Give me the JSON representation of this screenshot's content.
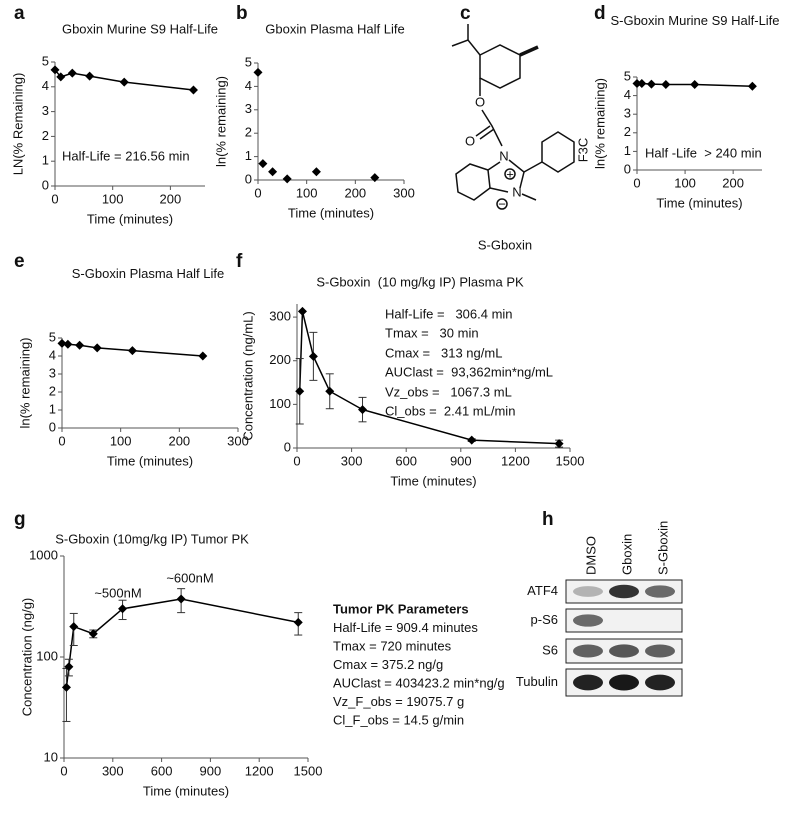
{
  "panels": [
    "a",
    "b",
    "c",
    "d",
    "e",
    "f",
    "g",
    "h"
  ],
  "chart_data": [
    {
      "type": "line",
      "title": "Gboxin Murine S9 Half-Life",
      "x_label": "Time (minutes)",
      "y_label": "LN(% Remaining)",
      "x": [
        0,
        10,
        30,
        60,
        120,
        240
      ],
      "values": [
        4.68,
        4.4,
        4.55,
        4.43,
        4.19,
        3.87
      ],
      "color": "#000000",
      "xlim": [
        0,
        260
      ],
      "xticks": [
        0,
        100,
        200
      ],
      "ylim": [
        0,
        5
      ],
      "yticks": [
        0,
        1,
        2,
        3,
        4,
        5
      ],
      "annotations": [
        "Half-Life = 216.56 min"
      ]
    },
    {
      "type": "scatter",
      "title": "Gboxin Plasma Half Life",
      "x_label": "Time (minutes)",
      "y_label": "ln(% remaining)",
      "x": [
        0,
        10,
        30,
        60,
        120,
        240
      ],
      "values": [
        4.6,
        0.7,
        0.35,
        0.05,
        0.35,
        0.1
      ],
      "color": "#000000",
      "xlim": [
        0,
        300
      ],
      "xticks": [
        0,
        100,
        200,
        300
      ],
      "ylim": [
        0,
        5
      ],
      "yticks": [
        0,
        1,
        2,
        3,
        4,
        5
      ]
    },
    {
      "type": "line",
      "title": "S-Gboxin Murine S9 Half-Life",
      "x_label": "Time (minutes)",
      "y_label": "ln(% remaining)",
      "x": [
        0,
        10,
        30,
        60,
        120,
        240
      ],
      "values": [
        4.65,
        4.65,
        4.62,
        4.6,
        4.6,
        4.5
      ],
      "color": "#000000",
      "xlim": [
        0,
        260
      ],
      "xticks": [
        0,
        100,
        200
      ],
      "ylim": [
        0,
        5
      ],
      "yticks": [
        0,
        1,
        2,
        3,
        4,
        5
      ],
      "annotations": [
        "Half -Life  > 240 min"
      ]
    },
    {
      "type": "line",
      "title": "S-Gboxin Plasma Half Life",
      "x_label": "Time (minutes)",
      "y_label": "ln(% remaining)",
      "x": [
        0,
        10,
        30,
        60,
        120,
        240
      ],
      "values": [
        4.7,
        4.65,
        4.6,
        4.45,
        4.3,
        4.0
      ],
      "color": "#000000",
      "xlim": [
        0,
        300
      ],
      "xticks": [
        0,
        100,
        200,
        300
      ],
      "ylim": [
        0,
        5
      ],
      "yticks": [
        0,
        1,
        2,
        3,
        4,
        5
      ]
    },
    {
      "type": "line",
      "title": "S-Gboxin  (10 mg/kg IP) Plasma PK",
      "x_label": "Time (minutes)",
      "y_label": "Concentration (ng/mL)",
      "x": [
        15,
        30,
        90,
        180,
        360,
        960,
        1440
      ],
      "values": [
        130,
        313,
        210,
        130,
        88,
        18,
        10
      ],
      "errors": [
        75,
        null,
        55,
        40,
        28,
        3,
        8
      ],
      "color": "#000000",
      "xlim": [
        0,
        1500
      ],
      "xticks": [
        0,
        300,
        600,
        900,
        1200,
        1500
      ],
      "ylim": [
        0,
        330
      ],
      "yticks": [
        0,
        100,
        200,
        300
      ],
      "annotations": [
        "Half-Life =   306.4 min",
        "Tmax =   30 min",
        "Cmax =   313 ng/mL",
        "AUClast =  93,362min*ng/mL",
        "Vz_obs =   1067.3 mL",
        "Cl_obs =  2.41 mL/min"
      ]
    },
    {
      "type": "line",
      "title": "S-Gboxin (10mg/kg IP) Tumor PK",
      "x_label": "Time (minutes)",
      "y_label": "Concentration (ng/g)",
      "x": [
        15,
        30,
        60,
        180,
        360,
        720,
        1440
      ],
      "values": [
        50,
        80,
        200,
        170,
        300,
        375,
        220
      ],
      "errors": [
        27,
        15,
        70,
        15,
        65,
        100,
        55
      ],
      "color": "#000000",
      "log_y": true,
      "xlim": [
        0,
        1500
      ],
      "xticks": [
        0,
        300,
        600,
        900,
        1200,
        1500
      ],
      "ylim": [
        10,
        1000
      ],
      "yticks": [
        10,
        100,
        1000
      ],
      "annotations": [
        "~500nM",
        "~600nM"
      ],
      "parameters_title": "Tumor PK Parameters",
      "parameters": [
        "Half-Life = 909.4 minutes",
        "Tmax = 720 minutes",
        "Cmax = 375.2 ng/g",
        "AUClast = 403423.2 min*ng/g",
        "Vz_F_obs = 19075.7 g",
        "Cl_F_obs = 14.5 g/min"
      ]
    }
  ],
  "structure": {
    "name": "S-Gboxin",
    "atoms": [
      "O",
      "O",
      "N",
      "N",
      "F3C"
    ],
    "charges": [
      "+",
      "−"
    ]
  },
  "blot": {
    "lanes": [
      "DMSO",
      "Gboxin",
      "S-Gboxin"
    ],
    "proteins": [
      "ATF4",
      "p-S6",
      "S6",
      "Tubulin"
    ]
  }
}
